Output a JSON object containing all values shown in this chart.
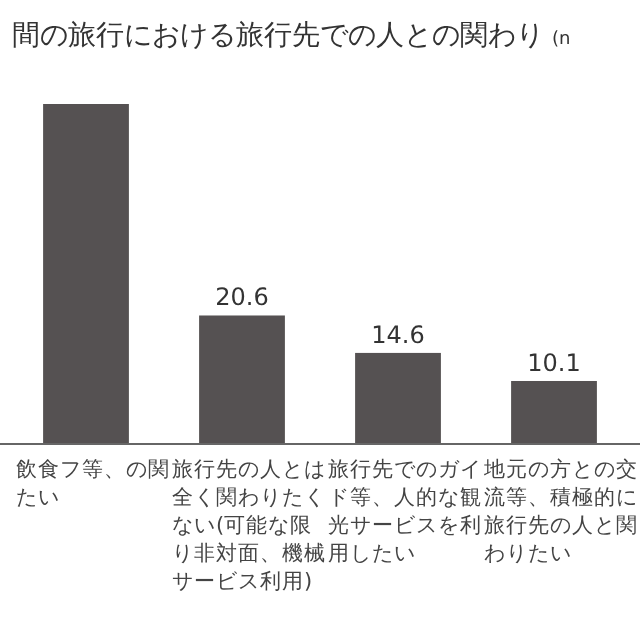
{
  "chart_data": {
    "type": "bar",
    "title": "間の旅行における旅行先での人との関わり",
    "subtitle": "(n",
    "categories": [
      "飲食フ等、の関たい",
      "旅行先の人とは全く関わりたくない(可能な限り非対面、機械サービス利用)",
      "旅行先でのガイド等、人的な観光サービスを利用したい",
      "地元の方との交流等、積極的に旅行先の人と関わりたい"
    ],
    "values": [
      54.5,
      20.6,
      14.6,
      10.1
    ],
    "value_labels": [
      null,
      "20.6",
      "14.6",
      "10.1"
    ],
    "color": "#555152"
  }
}
